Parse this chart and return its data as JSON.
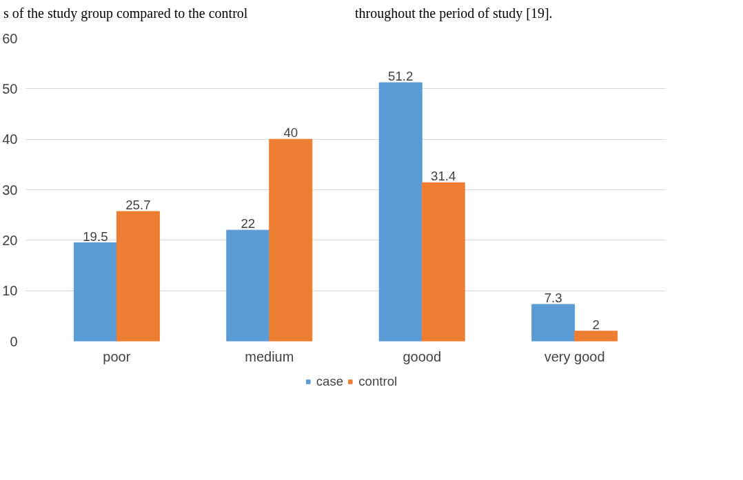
{
  "chart_data": {
    "type": "bar",
    "categories": [
      "poor",
      "medium",
      "goood",
      "very good"
    ],
    "series": [
      {
        "name": "case",
        "color": "#5b9bd5",
        "values": [
          19.5,
          22,
          51.2,
          7.3
        ]
      },
      {
        "name": "control",
        "color": "#ed7d31",
        "values": [
          25.7,
          40,
          31.4,
          2
        ]
      }
    ],
    "ylim": [
      0,
      60
    ],
    "yticks": [
      0,
      10,
      20,
      30,
      40,
      50,
      60
    ],
    "grid": "y",
    "legend": "bottom",
    "data_labels": true,
    "annotations": [
      "s of the study group compared to the control",
      "throughout the period of study [19]."
    ]
  }
}
